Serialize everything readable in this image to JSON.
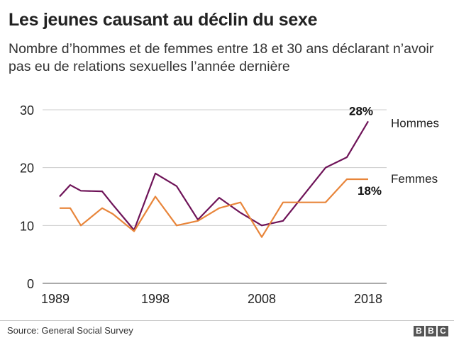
{
  "title": "Les jeunes causant au déclin du sexe",
  "subtitle": "Nombre d’hommes et de femmes entre 18 et 30 ans déclarant n’avoir pas eu de relations sexuelles l’année dernière",
  "source": "Source: General Social Survey",
  "logo": "BBC",
  "chart_data": {
    "type": "line",
    "x": [
      1989,
      1990,
      1991,
      1993,
      1994,
      1996,
      1998,
      2000,
      2002,
      2004,
      2006,
      2008,
      2010,
      2014,
      2016,
      2018
    ],
    "series": [
      {
        "name": "Hommes",
        "color": "#6e1358",
        "end_label": "28%",
        "values": [
          15,
          17,
          16,
          15.9,
          13.6,
          9.2,
          19,
          16.8,
          11,
          14.8,
          12.2,
          10,
          10.8,
          20,
          21.8,
          28
        ]
      },
      {
        "name": "Femmes",
        "color": "#e8853a",
        "end_label": "18%",
        "values": [
          13,
          13,
          10,
          13,
          12,
          9,
          15,
          10,
          10.8,
          13,
          14,
          8,
          14,
          14,
          18,
          18
        ]
      }
    ],
    "x_ticks": [
      "1989",
      "1998",
      "2008",
      "2018"
    ],
    "y_ticks": [
      "0",
      "10",
      "20",
      "30"
    ],
    "ylim": [
      0,
      30
    ],
    "xlim": [
      1989,
      2018
    ],
    "grid": true,
    "legend": "right, at line ends"
  }
}
